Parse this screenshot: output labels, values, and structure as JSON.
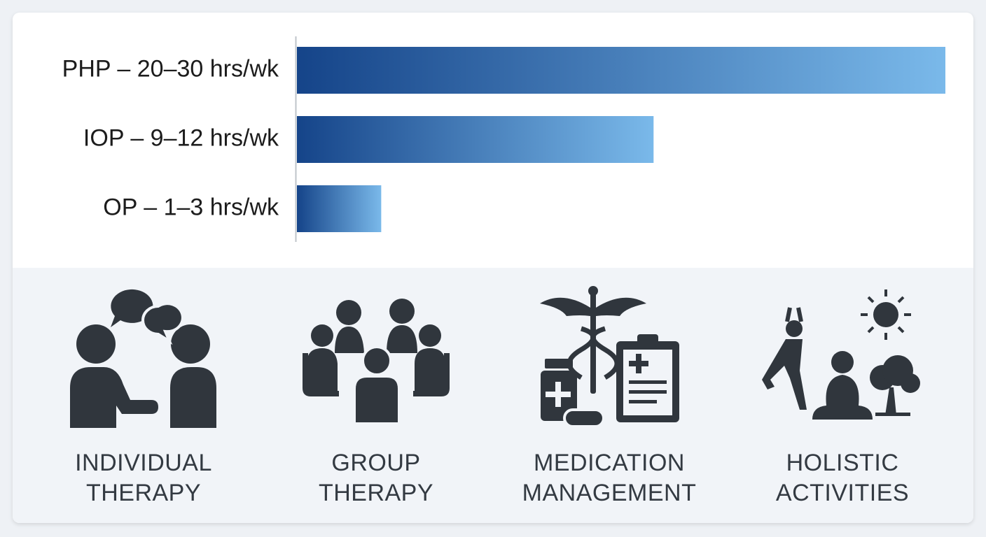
{
  "chart_data": {
    "type": "hbar",
    "categories": [
      "PHP – 20–30 hrs/wk",
      "IOP – 9–12 hrs/wk",
      "OP – 1–3 hrs/wk"
    ],
    "values": [
      100,
      55,
      13
    ],
    "gradient": [
      "#154489",
      "#7ab9ea"
    ]
  },
  "services": [
    {
      "lines": [
        "INDIVIDUAL",
        "THERAPY"
      ]
    },
    {
      "lines": [
        "GROUP",
        "THERAPY"
      ]
    },
    {
      "lines": [
        "MEDICATION",
        "MANAGEMENT"
      ]
    },
    {
      "lines": [
        "HOLISTIC",
        "ACTIVITIES"
      ]
    }
  ]
}
